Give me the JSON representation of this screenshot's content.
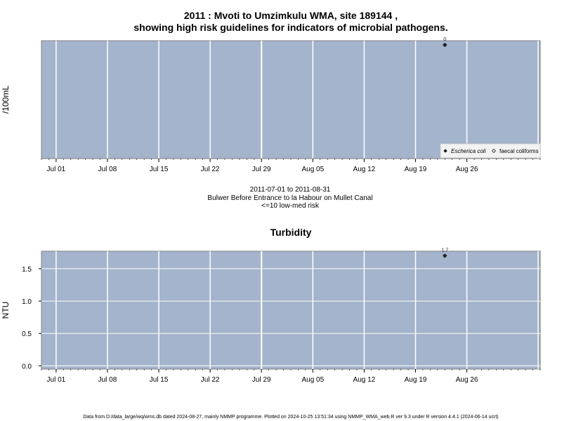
{
  "chart_data": [
    {
      "type": "scatter",
      "title_line1": "2011 : Mvoti to Umzimkulu WMA, site 189144 ,",
      "title_line2": "showing high risk guidelines for indicators of microbial pathogens.",
      "ylabel": "/100mL",
      "x_ticks": [
        "Jul 01",
        "Jul 08",
        "Jul 15",
        "Jul 22",
        "Jul 29",
        "Aug 05",
        "Aug 12",
        "Aug 19",
        "Aug 26"
      ],
      "x_tick_dates": [
        "2011-07-01",
        "2011-07-08",
        "2011-07-15",
        "2011-07-22",
        "2011-07-29",
        "2011-08-05",
        "2011-08-12",
        "2011-08-19",
        "2011-08-26"
      ],
      "xlim": [
        "2011-06-29",
        "2011-09-05"
      ],
      "y_ticks": [],
      "series": [
        {
          "name": "Escherica coli",
          "marker": "filled-diamond",
          "points": [
            {
              "x": "2011-08-23",
              "y": 0,
              "label": "0"
            }
          ]
        }
      ],
      "legend": {
        "position": "bottom-right",
        "entries": [
          {
            "label": "Escherica coli",
            "marker": "filled-diamond",
            "italic": true
          },
          {
            "label": "faecal coliforms",
            "marker": "open-diamond",
            "italic": false
          }
        ]
      },
      "grid": true,
      "colors": {
        "panel": "#a4b4cc",
        "grid": "#ffffff",
        "point": "#222222"
      }
    },
    {
      "type": "scatter",
      "title": "Turbidity",
      "ylabel": "NTU",
      "x_ticks": [
        "Jul 01",
        "Jul 08",
        "Jul 15",
        "Jul 22",
        "Jul 29",
        "Aug 05",
        "Aug 12",
        "Aug 19",
        "Aug 26"
      ],
      "x_tick_dates": [
        "2011-07-01",
        "2011-07-08",
        "2011-07-15",
        "2011-07-22",
        "2011-07-29",
        "2011-08-05",
        "2011-08-12",
        "2011-08-19",
        "2011-08-26"
      ],
      "xlim": [
        "2011-06-29",
        "2011-09-05"
      ],
      "y_ticks": [
        0.0,
        0.5,
        1.0,
        1.5
      ],
      "y_tick_labels": [
        "0.0",
        "0.5",
        "1.0",
        "1.5"
      ],
      "ylim": [
        -0.05,
        1.77
      ],
      "series": [
        {
          "name": "",
          "marker": "filled-diamond",
          "points": [
            {
              "x": "2011-08-23",
              "y": 1.7,
              "label": "1.7"
            }
          ]
        }
      ],
      "grid": true,
      "colors": {
        "panel": "#a4b4cc",
        "grid": "#ffffff",
        "point": "#222222"
      }
    }
  ],
  "subtitle": {
    "line1": "2011-07-01 to 2011-08-31",
    "line2": "Bulwer Before Entrance to la Habour on Mullet Canal",
    "line3": "<=10 low-med risk"
  },
  "footer": "Data from D:/data_large/wq/wms.db dated 2024-08-27, mainly NMMP programme. Plotted on 2024-10-25 13:51:34 using NMMP_WMA_web.R ver 9.3 under R version 4.4.1 (2024-06-14 ucrt)"
}
